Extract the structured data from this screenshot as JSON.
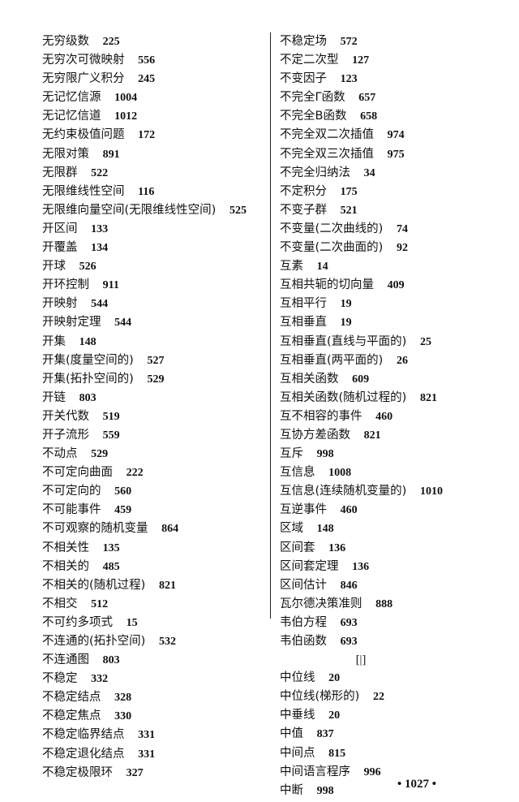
{
  "left_column": [
    {
      "term": "无穷级数",
      "page": "225"
    },
    {
      "term": "无穷次可微映射",
      "page": "556"
    },
    {
      "term": "无穷限广义积分",
      "page": "245"
    },
    {
      "term": "无记忆信源",
      "page": "1004"
    },
    {
      "term": "无记忆信道",
      "page": "1012"
    },
    {
      "term": "无约束极值问题",
      "page": "172"
    },
    {
      "term": "无限对策",
      "page": "891"
    },
    {
      "term": "无限群",
      "page": "522"
    },
    {
      "term": "无限维线性空间",
      "page": "116"
    },
    {
      "term": "无限维向量空间(无限维线性空间)",
      "page": "525"
    },
    {
      "term": "开区间",
      "page": "133"
    },
    {
      "term": "开覆盖",
      "page": "134"
    },
    {
      "term": "开球",
      "page": "526"
    },
    {
      "term": "开环控制",
      "page": "911"
    },
    {
      "term": "开映射",
      "page": "544"
    },
    {
      "term": "开映射定理",
      "page": "544"
    },
    {
      "term": "开集",
      "page": "148"
    },
    {
      "term": "开集(度量空间的)",
      "page": "527"
    },
    {
      "term": "开集(拓扑空间的)",
      "page": "529"
    },
    {
      "term": "开链",
      "page": "803"
    },
    {
      "term": "开关代数",
      "page": "519"
    },
    {
      "term": "开子流形",
      "page": "559"
    },
    {
      "term": "不动点",
      "page": "529"
    },
    {
      "term": "不可定向曲面",
      "page": "222"
    },
    {
      "term": "不可定向的",
      "page": "560"
    },
    {
      "term": "不可能事件",
      "page": "459"
    },
    {
      "term": "不可观察的随机变量",
      "page": "864"
    },
    {
      "term": "不相关性",
      "page": "135"
    },
    {
      "term": "不相关的",
      "page": "485"
    },
    {
      "term": "不相关的(随机过程)",
      "page": "821"
    },
    {
      "term": "不相交",
      "page": "512"
    },
    {
      "term": "不可约多项式",
      "page": "15"
    },
    {
      "term": "不连通的(拓扑空间)",
      "page": "532"
    },
    {
      "term": "不连通图",
      "page": "803"
    },
    {
      "term": "不稳定",
      "page": "332"
    },
    {
      "term": "不稳定结点",
      "page": "328"
    },
    {
      "term": "不稳定焦点",
      "page": "330"
    },
    {
      "term": "不稳定临界结点",
      "page": "331"
    },
    {
      "term": "不稳定退化结点",
      "page": "331"
    },
    {
      "term": "不稳定极限环",
      "page": "327"
    }
  ],
  "right_column": [
    {
      "term": "不稳定场",
      "page": "572"
    },
    {
      "term": "不定二次型",
      "page": "127"
    },
    {
      "term": "不变因子",
      "page": "123"
    },
    {
      "term": "不完全Γ函数",
      "page": "657"
    },
    {
      "term": "不完全B函数",
      "page": "658"
    },
    {
      "term": "不完全双二次插值",
      "page": "974"
    },
    {
      "term": "不完全双三次插值",
      "page": "975"
    },
    {
      "term": "不完全归纳法",
      "page": "34"
    },
    {
      "term": "不定积分",
      "page": "175"
    },
    {
      "term": "不变子群",
      "page": "521"
    },
    {
      "term": "不变量(二次曲线的)",
      "page": "74"
    },
    {
      "term": "不变量(二次曲面的)",
      "page": "92"
    },
    {
      "term": "互素",
      "page": "14"
    },
    {
      "term": "互相共轭的切向量",
      "page": "409"
    },
    {
      "term": "互相平行",
      "page": "19"
    },
    {
      "term": "互相垂直",
      "page": "19"
    },
    {
      "term": "互相垂直(直线与平面的)",
      "page": "25"
    },
    {
      "term": "互相垂直(两平面的)",
      "page": "26"
    },
    {
      "term": "互相关函数",
      "page": "609"
    },
    {
      "term": "互相关函数(随机过程的)",
      "page": "821"
    },
    {
      "term": "互不相容的事件",
      "page": "460"
    },
    {
      "term": "互协方差函数",
      "page": "821"
    },
    {
      "term": "互斥",
      "page": "998"
    },
    {
      "term": "互信息",
      "page": "1008"
    },
    {
      "term": "互信息(连续随机变量的)",
      "page": "1010"
    },
    {
      "term": "互逆事件",
      "page": "460"
    },
    {
      "term": "区域",
      "page": "148"
    },
    {
      "term": "区间套",
      "page": "136"
    },
    {
      "term": "区间套定理",
      "page": "136"
    },
    {
      "term": "区间估计",
      "page": "846"
    },
    {
      "term": "瓦尔德决策准则",
      "page": "888"
    },
    {
      "term": "韦伯方程",
      "page": "693"
    },
    {
      "term": "韦伯函数",
      "page": "693"
    }
  ],
  "section_header": "[|]",
  "section_entries": [
    {
      "term": "中位线",
      "page": "20"
    },
    {
      "term": "中位线(梯形的)",
      "page": "22"
    },
    {
      "term": "中垂线",
      "page": "20"
    },
    {
      "term": "中值",
      "page": "837"
    },
    {
      "term": "中间点",
      "page": "815"
    },
    {
      "term": "中间语言程序",
      "page": "996"
    },
    {
      "term": "中断",
      "page": "998"
    }
  ],
  "page_number": "• 1027 •"
}
